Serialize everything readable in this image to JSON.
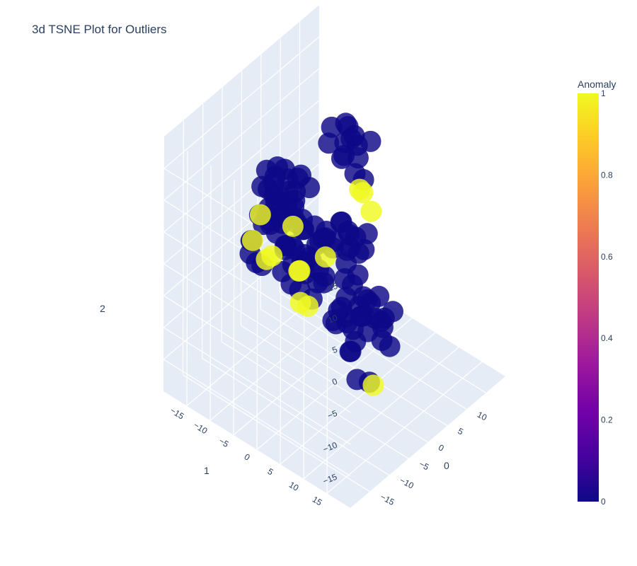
{
  "chart_data": {
    "type": "scatter",
    "title": "3d TSNE Plot for Outliers",
    "axes": {
      "x": {
        "title": "0",
        "ticks": [
          "−15",
          "−10",
          "−5",
          "0",
          "5",
          "10"
        ]
      },
      "y": {
        "title": "1",
        "ticks": [
          "−15",
          "−10",
          "−5",
          "0",
          "5",
          "10",
          "15"
        ]
      },
      "z": {
        "title": "2",
        "ticks": [
          "−15",
          "−10",
          "−5",
          "0",
          "5",
          "10",
          "15"
        ]
      }
    },
    "colorbar": {
      "title": "Anomaly",
      "ticks": [
        "0",
        "0.2",
        "0.4",
        "0.6",
        "0.8",
        "1"
      ],
      "range": [
        0,
        1
      ],
      "colorscale": [
        "#0d0887",
        "#46039f",
        "#7201a8",
        "#9c179e",
        "#bd3786",
        "#d8576b",
        "#ed7953",
        "#fb9f3a",
        "#fdca26",
        "#f0f921"
      ]
    },
    "series": [
      {
        "anomaly": 0,
        "color": "#0d0887",
        "points": [
          [
            -8,
            -6,
            10
          ],
          [
            -9,
            -4,
            12
          ],
          [
            -7,
            -7,
            13
          ],
          [
            -6,
            -5,
            11
          ],
          [
            -10,
            -3,
            9
          ],
          [
            -8,
            -8,
            14
          ],
          [
            -5,
            -6,
            12
          ],
          [
            -9,
            -7,
            8
          ],
          [
            -7,
            -3,
            10
          ],
          [
            -6,
            -8,
            9
          ],
          [
            -11,
            -5,
            11
          ],
          [
            -4,
            -4,
            13
          ],
          [
            -8,
            -2,
            12
          ],
          [
            -10,
            -7,
            7
          ],
          [
            -5,
            -9,
            10
          ],
          [
            -7,
            -5,
            15
          ],
          [
            -9,
            -5,
            6
          ],
          [
            -6,
            -3,
            14
          ],
          [
            -3,
            -6,
            9
          ],
          [
            -12,
            -4,
            10
          ],
          [
            -8,
            -9,
            11
          ],
          [
            -4,
            -7,
            7
          ],
          [
            -6,
            -2,
            8
          ],
          [
            -10,
            -6,
            13
          ],
          [
            -5,
            -4,
            6
          ],
          [
            -7,
            -8,
            5
          ],
          [
            -9,
            -3,
            5
          ],
          [
            -3,
            -3,
            11
          ],
          [
            -6,
            -6,
            7
          ],
          [
            -8,
            -4,
            4
          ],
          [
            -11,
            -7,
            9
          ],
          [
            -4,
            -9,
            12
          ],
          [
            -2,
            -5,
            3
          ],
          [
            -3,
            -4,
            0
          ],
          [
            -1,
            -6,
            2
          ],
          [
            -4,
            -3,
            -2
          ],
          [
            -2,
            -7,
            -1
          ],
          [
            -1,
            -3,
            1
          ],
          [
            -3,
            -8,
            4
          ],
          [
            0,
            -5,
            -3
          ],
          [
            -5,
            -5,
            2
          ],
          [
            -2,
            -2,
            -4
          ],
          [
            1,
            -4,
            0
          ],
          [
            -4,
            -6,
            -5
          ],
          [
            -1,
            -8,
            3
          ],
          [
            0,
            -2,
            2
          ],
          [
            -3,
            -5,
            -6
          ],
          [
            2,
            -6,
            1
          ],
          [
            -6,
            -4,
            0
          ],
          [
            -2,
            -9,
            -2
          ],
          [
            1,
            -3,
            -5
          ],
          [
            -1,
            -1,
            4
          ],
          [
            3,
            -5,
            -1
          ],
          [
            -4,
            -2,
            1
          ],
          [
            0,
            -7,
            -4
          ],
          [
            -5,
            -7,
            -3
          ],
          [
            2,
            -4,
            -7
          ],
          [
            -3,
            -1,
            -1
          ],
          [
            1,
            -8,
            -6
          ],
          [
            -1,
            -4,
            -8
          ],
          [
            3,
            0,
            -8
          ],
          [
            5,
            1,
            -10
          ],
          [
            4,
            -1,
            -12
          ],
          [
            6,
            2,
            -9
          ],
          [
            2,
            1,
            -11
          ],
          [
            7,
            0,
            -13
          ],
          [
            5,
            -2,
            -7
          ],
          [
            3,
            2,
            -14
          ],
          [
            6,
            -1,
            -15
          ],
          [
            4,
            3,
            -10
          ],
          [
            8,
            1,
            -11
          ],
          [
            2,
            -2,
            -12
          ],
          [
            5,
            3,
            -13
          ],
          [
            7,
            -2,
            -9
          ],
          [
            3,
            1,
            -16
          ],
          [
            6,
            0,
            -6
          ],
          [
            4,
            -3,
            -14
          ],
          [
            9,
            2,
            -10
          ],
          [
            1,
            0,
            -9
          ],
          [
            5,
            2,
            -8
          ],
          [
            8,
            -1,
            -14
          ],
          [
            3,
            -1,
            -10
          ],
          [
            7,
            3,
            -12
          ],
          [
            4,
            0,
            -17
          ],
          [
            6,
            5,
            -11
          ],
          [
            5,
            6,
            -13
          ],
          [
            8,
            4,
            -12
          ],
          [
            4,
            7,
            -10
          ],
          [
            7,
            6,
            -15
          ],
          [
            9,
            5,
            -11
          ],
          [
            8,
            -4,
            -5
          ],
          [
            9,
            -3,
            -3
          ],
          [
            10,
            -5,
            -6
          ],
          [
            7,
            -6,
            -4
          ],
          [
            11,
            -4,
            -7
          ],
          [
            9,
            -6,
            -2
          ],
          [
            10,
            -2,
            -5
          ],
          [
            8,
            -7,
            -6
          ],
          [
            12,
            -3,
            -4
          ],
          [
            9,
            -5,
            -8
          ],
          [
            11,
            -6,
            -5
          ],
          [
            7,
            -3,
            -1
          ],
          [
            10,
            -7,
            -3
          ],
          [
            9,
            -6,
            8
          ],
          [
            10,
            -4,
            6
          ],
          [
            11,
            -7,
            9
          ],
          [
            12,
            -5,
            7
          ],
          [
            8,
            -8,
            10
          ],
          [
            13,
            -6,
            8
          ],
          [
            10,
            -9,
            11
          ],
          [
            11,
            -3,
            5
          ],
          [
            12,
            -8,
            6
          ],
          [
            9,
            -4,
            12
          ],
          [
            14,
            -4,
            9
          ],
          [
            10,
            -6,
            13
          ],
          [
            13,
            -8,
            10
          ],
          [
            11,
            -5,
            11
          ],
          [
            -13,
            -6,
            3
          ],
          [
            -12,
            -8,
            5
          ],
          [
            -14,
            -4,
            4
          ],
          [
            -11,
            -9,
            2
          ],
          [
            -13,
            -7,
            6
          ],
          [
            1,
            4,
            -18
          ],
          [
            3,
            5,
            -19
          ]
        ]
      },
      {
        "anomaly": 1,
        "color": "#f0f921",
        "points": [
          [
            -14,
            -6,
            7
          ],
          [
            -6,
            -4,
            6
          ],
          [
            -9,
            -6,
            2
          ],
          [
            -8,
            -8,
            0
          ],
          [
            -3,
            -5,
            -3
          ],
          [
            -2,
            -6,
            -4
          ],
          [
            -4,
            -4,
            -7
          ],
          [
            0,
            -2,
            -1
          ],
          [
            12,
            -4,
            2
          ],
          [
            10,
            -3,
            4
          ],
          [
            13,
            -3,
            -1
          ],
          [
            4,
            -9,
            -14
          ],
          [
            4,
            5,
            -20
          ],
          [
            -12,
            -6,
            10
          ]
        ]
      }
    ]
  }
}
